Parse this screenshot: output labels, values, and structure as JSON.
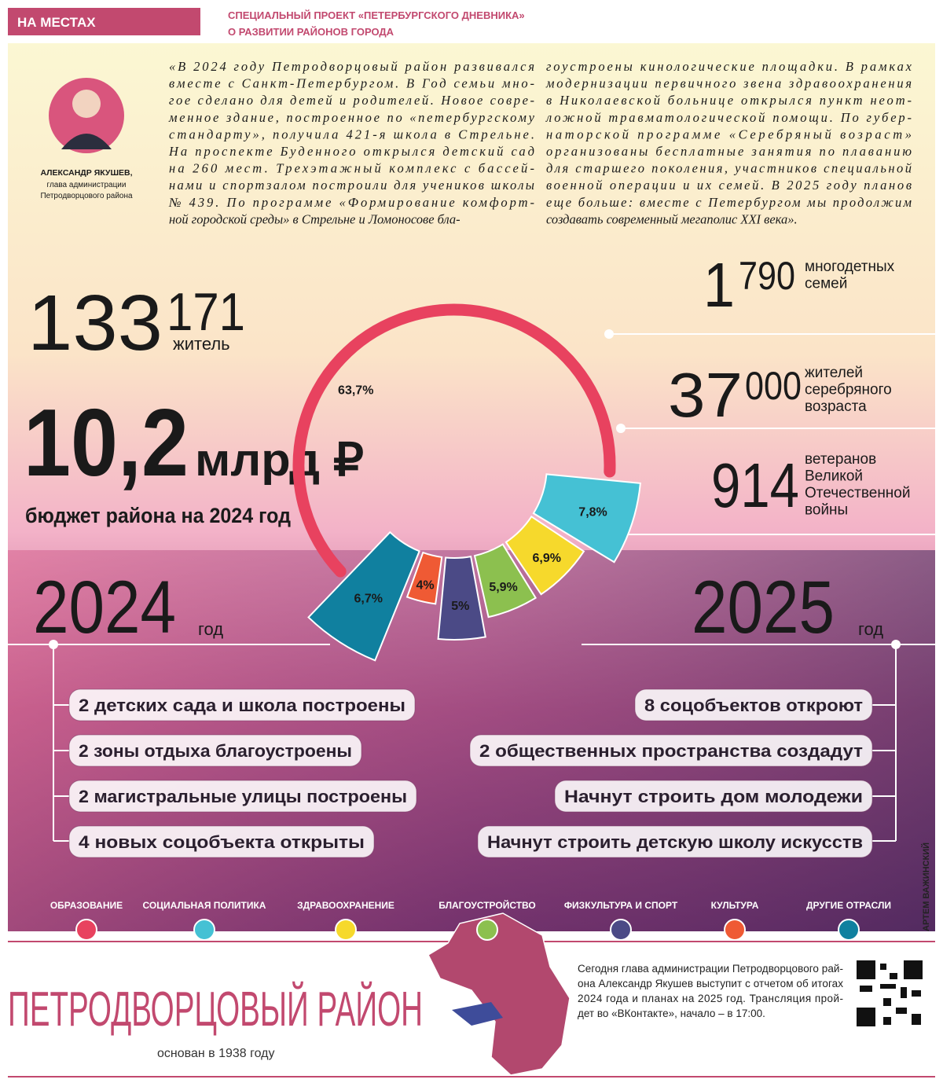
{
  "header": {
    "rubric": "НА МЕСТАХ",
    "project": [
      "СПЕЦИАЛЬНЫЙ ПРОЕКТ «ПЕТЕРБУРГСКОГО ДНЕВНИКА»",
      "О РАЗВИТИИ РАЙОНОВ ГОРОДА"
    ]
  },
  "quote": {
    "columns": [
      [
        "«В 2024 году Петродворцовый район развивался",
        "вместе с Санкт-Петербургом. В Год семьи мно-",
        "гое сделано для детей и родителей. Новое совре-",
        "менное здание, построенное по «петербургскому",
        "стандарту», получила 421-я школа в Стрельне.",
        "На проспекте Буденного открылся детский сад",
        "на 260 мест. Трехэтажный комплекс с бассей-",
        "нами и спортзалом построили для учеников школы",
        "№ 439. По программе «Формирование комфорт-",
        "ной городской среды» в Стрельне и Ломоносове бла-"
      ],
      [
        "гоустроены кинологические площадки. В рамках",
        "модернизации первичного звена здравоохранения",
        "в Николаевской больнице открылся пункт неот-",
        "ложной травматологической помощи. По губер-",
        "наторской программе «Серебряный возраст»",
        "организованы бесплатные занятия по плаванию",
        "для старшего поколения, участников специальной",
        "военной операции и их семей. В 2025 году планов",
        "еще больше: вместе с Петербургом мы продолжим",
        "создавать современный мегаполис XXI века»."
      ]
    ],
    "author": {
      "name": "АЛЕКСАНДР ЯКУШЕВ,",
      "position": [
        "глава администрации",
        "Петродворцового района"
      ]
    }
  },
  "population": {
    "big": "133",
    "small": "171",
    "unit": "житель"
  },
  "budget": {
    "value": "10,2",
    "unit": "млрд ₽",
    "caption": "бюджет района на 2024 год"
  },
  "stats": [
    {
      "big": "1",
      "small": "790",
      "label": [
        "многодетных",
        "семей"
      ]
    },
    {
      "big": "37",
      "small": "000",
      "label": [
        "жителей",
        "серебряного",
        "возраста"
      ]
    },
    {
      "big": "914",
      "label": [
        "ветеранов",
        "Великой",
        "Отечественной",
        "войны"
      ]
    }
  ],
  "chart_data": {
    "type": "radial",
    "categories": [
      "ОБРАЗОВАНИЕ",
      "СОЦИАЛЬНАЯ ПОЛИТИКА",
      "ЗДРАВООХРАНЕНИЕ",
      "БЛАГОУСТРОЙСТВО",
      "ФИЗКУЛЬТУРА И СПОРТ",
      "КУЛЬТУРА",
      "ДРУГИЕ ОТРАСЛИ"
    ],
    "values": [
      63.7,
      7.8,
      6.9,
      5.9,
      5,
      4,
      6.7
    ],
    "value_labels": [
      "63,7%",
      "7,8%",
      "6,9%",
      "5,9%",
      "5%",
      "4%",
      "6,7%"
    ],
    "colors": [
      "#e8425f",
      "#45c1d4",
      "#f6d92c",
      "#8cc04f",
      "#4b4a86",
      "#ef5a34",
      "#10809f"
    ]
  },
  "plans": [
    {
      "year": "2024",
      "word": "год",
      "items": [
        "2 детских сада и школа построены",
        "2 зоны отдыха благоустроены",
        "2 магистральные улицы построены",
        "4 новых соцобъекта открыты"
      ]
    },
    {
      "year": "2025",
      "word": "год",
      "items": [
        "8 соцобъектов откроют",
        "2 общественных пространства создадут",
        "Начнут строить дом молодежи",
        "Начнут строить детскую школу искусств"
      ]
    }
  ],
  "credit": "АРТЕМ ВАЖИНСКИЙ",
  "footer": {
    "title": "ПЕТРОДВОРЦОВЫЙ РАЙОН",
    "founded": "основан в 1938 году",
    "note": [
      "Сегодня глава администрации Петродворцового рай-",
      "она Александр Якушев выступит с отчетом об итогах",
      "2024 года и планах на 2025 год. Трансляция прой-",
      "дет во «ВКонтакте», начало – в 17:00."
    ]
  }
}
